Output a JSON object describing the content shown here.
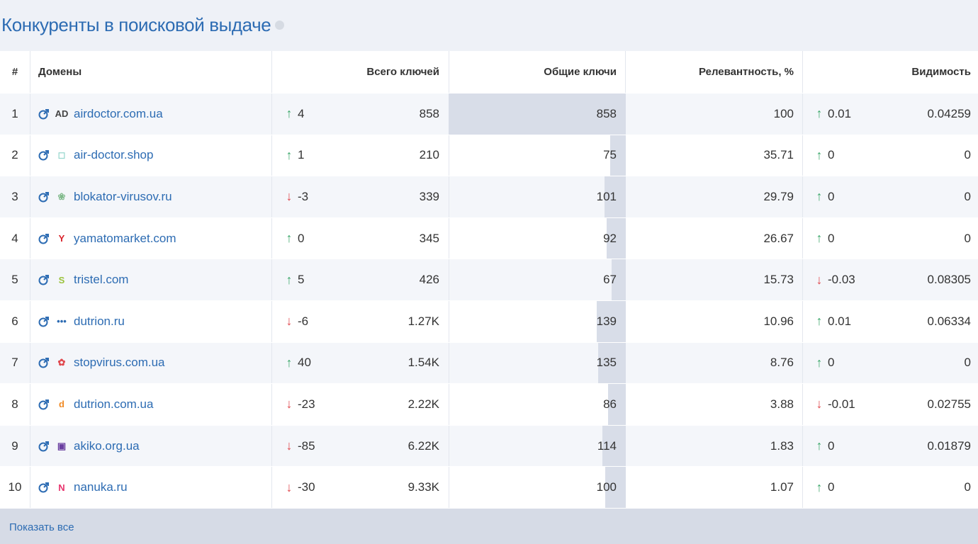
{
  "title": "Конкуренты в поисковой выдаче",
  "headers": {
    "num": "#",
    "domains": "Домены",
    "total": "Всего ключей",
    "common": "Общие ключи",
    "relevance": "Релевантность, %",
    "visibility": "Видимость"
  },
  "rows": [
    {
      "num": "1",
      "domain": "airdoctor.com.ua",
      "fav": "AD",
      "fav_color": "#444444",
      "trend_dir": "up",
      "trend": "4",
      "total": "858",
      "common": "858",
      "common_share": 1.0,
      "relevance": "100",
      "vis_dir": "up",
      "vis_trend": "0.01",
      "visibility": "0.04259"
    },
    {
      "num": "2",
      "domain": "air-doctor.shop",
      "fav": "◻",
      "fav_color": "#9ad8cf",
      "trend_dir": "up",
      "trend": "1",
      "total": "210",
      "common": "75",
      "common_share": 0.087,
      "relevance": "35.71",
      "vis_dir": "up",
      "vis_trend": "0",
      "visibility": "0"
    },
    {
      "num": "3",
      "domain": "blokator-virusov.ru",
      "fav": "❀",
      "fav_color": "#7fb98a",
      "trend_dir": "down",
      "trend": "-3",
      "total": "339",
      "common": "101",
      "common_share": 0.118,
      "relevance": "29.79",
      "vis_dir": "up",
      "vis_trend": "0",
      "visibility": "0"
    },
    {
      "num": "4",
      "domain": "yamatomarket.com",
      "fav": "Y",
      "fav_color": "#d9222a",
      "trend_dir": "up",
      "trend": "0",
      "total": "345",
      "common": "92",
      "common_share": 0.107,
      "relevance": "26.67",
      "vis_dir": "up",
      "vis_trend": "0",
      "visibility": "0"
    },
    {
      "num": "5",
      "domain": "tristel.com",
      "fav": "S",
      "fav_color": "#9bc23c",
      "trend_dir": "up",
      "trend": "5",
      "total": "426",
      "common": "67",
      "common_share": 0.078,
      "relevance": "15.73",
      "vis_dir": "down",
      "vis_trend": "-0.03",
      "visibility": "0.08305"
    },
    {
      "num": "6",
      "domain": "dutrion.ru",
      "fav": "•••",
      "fav_color": "#2d6cb3",
      "trend_dir": "down",
      "trend": "-6",
      "total": "1.27K",
      "common": "139",
      "common_share": 0.162,
      "relevance": "10.96",
      "vis_dir": "up",
      "vis_trend": "0.01",
      "visibility": "0.06334"
    },
    {
      "num": "7",
      "domain": "stopvirus.com.ua",
      "fav": "✿",
      "fav_color": "#e0484d",
      "trend_dir": "up",
      "trend": "40",
      "total": "1.54K",
      "common": "135",
      "common_share": 0.157,
      "relevance": "8.76",
      "vis_dir": "up",
      "vis_trend": "0",
      "visibility": "0"
    },
    {
      "num": "8",
      "domain": "dutrion.com.ua",
      "fav": "d",
      "fav_color": "#f08a24",
      "trend_dir": "down",
      "trend": "-23",
      "total": "2.22K",
      "common": "86",
      "common_share": 0.1,
      "relevance": "3.88",
      "vis_dir": "down",
      "vis_trend": "-0.01",
      "visibility": "0.02755"
    },
    {
      "num": "9",
      "domain": "akiko.org.ua",
      "fav": "▣",
      "fav_color": "#6a3fa0",
      "trend_dir": "down",
      "trend": "-85",
      "total": "6.22K",
      "common": "114",
      "common_share": 0.133,
      "relevance": "1.83",
      "vis_dir": "up",
      "vis_trend": "0",
      "visibility": "0.01879"
    },
    {
      "num": "10",
      "domain": "nanuka.ru",
      "fav": "N",
      "fav_color": "#e8336d",
      "trend_dir": "down",
      "trend": "-30",
      "total": "9.33K",
      "common": "100",
      "common_share": 0.117,
      "relevance": "1.07",
      "vis_dir": "up",
      "vis_trend": "0",
      "visibility": "0"
    }
  ],
  "footer": {
    "show_all": "Показать все"
  },
  "colors": {
    "link": "#2d6cb3",
    "up": "#3ca86b",
    "down": "#e0484d",
    "bar": "#d8dde8"
  }
}
